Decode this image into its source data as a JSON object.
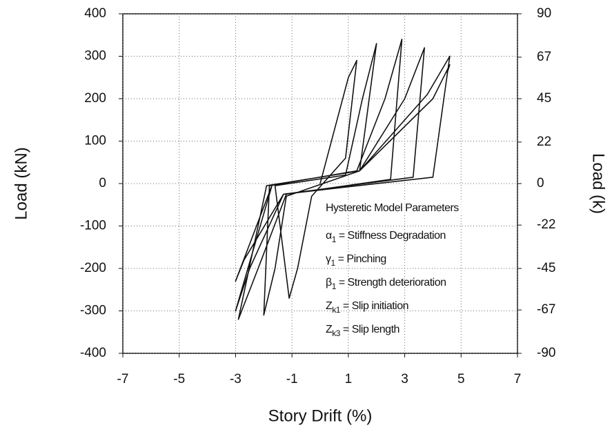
{
  "chart_data": {
    "type": "line",
    "xlabel": "Story Drift (%)",
    "ylabel": "Load (kN)",
    "y2label": "Load (k)",
    "xlim": [
      -7,
      7
    ],
    "xticks": [
      -7,
      -5,
      -3,
      -1,
      1,
      3,
      5,
      7
    ],
    "ylim": [
      -400,
      400
    ],
    "yticks": [
      -400,
      -300,
      -200,
      -100,
      0,
      100,
      200,
      300,
      400
    ],
    "y2lim": [
      -90,
      90
    ],
    "y2ticks": [
      -90,
      -67,
      -45,
      -22,
      0,
      22,
      45,
      67,
      90
    ],
    "grid": true,
    "annotation": {
      "title": "Hysteretic Model Parameters",
      "items": [
        {
          "symbol": "α",
          "sub": "1",
          "text": " = Stiffness Degradation"
        },
        {
          "symbol": "γ",
          "sub": "1",
          "text": " = Pinching"
        },
        {
          "symbol": "β",
          "sub": "1",
          "text": " = Strength deterioration"
        },
        {
          "symbol": "Z",
          "sub": "k1",
          "text": " = Slip initiation"
        },
        {
          "symbol": "Z",
          "sub": "k3",
          "text": " = Slip length"
        }
      ]
    },
    "x": [
      0,
      0.6,
      1.0,
      1.3,
      0.9,
      -0.3,
      -0.8,
      -1.1,
      -1.6,
      0.9,
      1.5,
      2.0,
      1.4,
      -1.2,
      -1.6,
      -2.0,
      -1.8,
      1.3,
      2.3,
      2.9,
      2.5,
      -1.2,
      -2.2,
      -2.9,
      -1.9,
      1.4,
      3.0,
      3.7,
      3.3,
      -1.3,
      -2.5,
      -3.0,
      -1.7,
      1.4,
      3.8,
      4.6,
      4.0,
      -1.3,
      -2.7,
      -3.0,
      -1.7,
      1.4,
      4.0,
      4.6,
      4.5
    ],
    "series": [
      {
        "color": "#111111",
        "values": [
          0,
          150,
          250,
          290,
          60,
          -30,
          -200,
          -270,
          -5,
          20,
          200,
          330,
          30,
          -30,
          -200,
          -310,
          -5,
          30,
          200,
          340,
          10,
          -25,
          -200,
          -320,
          -5,
          30,
          200,
          320,
          15,
          -25,
          -200,
          -300,
          -3,
          30,
          210,
          300,
          15,
          -25,
          -180,
          -230,
          -3,
          30,
          200,
          280,
          260
        ]
      }
    ]
  }
}
